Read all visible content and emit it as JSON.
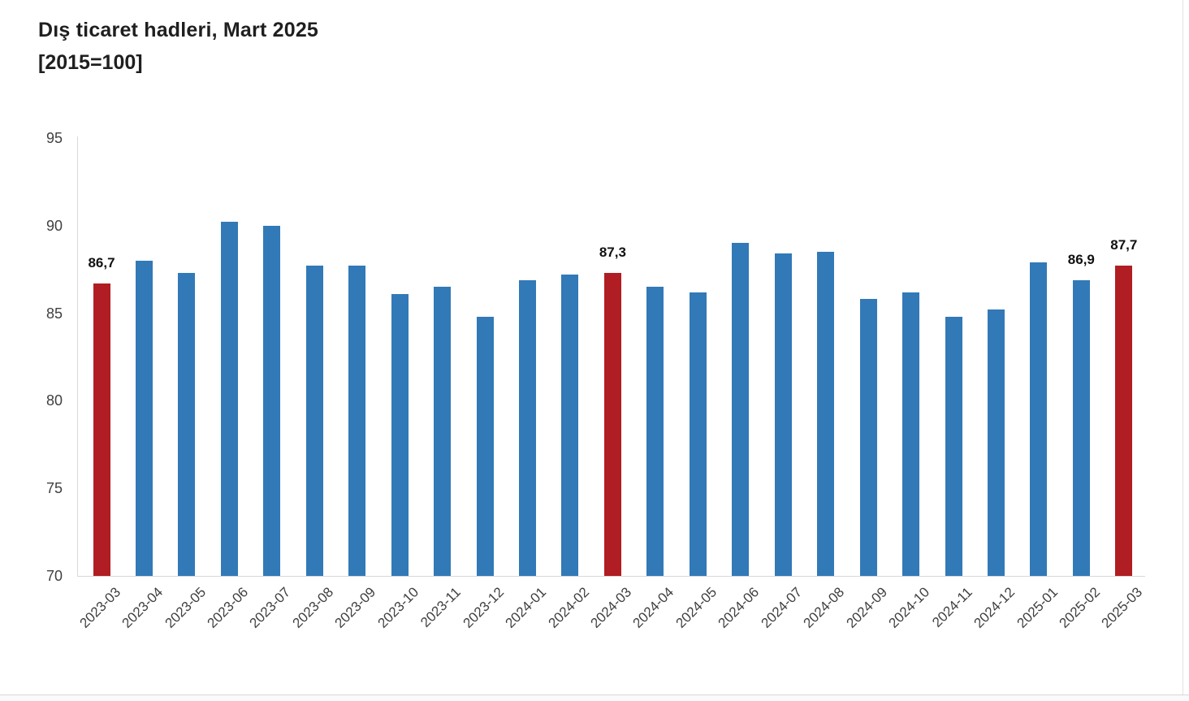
{
  "header": {
    "title": "Dış ticaret hadleri, Mart 2025",
    "subtitle": "[2015=100]"
  },
  "chart_data": {
    "type": "bar",
    "title": "Dış ticaret hadleri, Mart 2025",
    "subtitle": "[2015=100]",
    "categories": [
      "2023-03",
      "2023-04",
      "2023-05",
      "2023-06",
      "2023-07",
      "2023-08",
      "2023-09",
      "2023-10",
      "2023-11",
      "2023-12",
      "2024-01",
      "2024-02",
      "2024-03",
      "2024-04",
      "2024-05",
      "2024-06",
      "2024-07",
      "2024-08",
      "2024-09",
      "2024-10",
      "2024-11",
      "2024-12",
      "2025-01",
      "2025-02",
      "2025-03"
    ],
    "values": [
      86.7,
      88.0,
      87.3,
      90.2,
      90.0,
      87.7,
      87.7,
      86.1,
      86.5,
      84.8,
      86.9,
      87.2,
      87.3,
      86.5,
      86.2,
      89.0,
      88.4,
      88.5,
      85.8,
      86.2,
      84.8,
      85.2,
      87.9,
      86.9,
      87.7
    ],
    "highlighted_indices": [
      0,
      12,
      24
    ],
    "point_labels": {
      "0": "86,7",
      "12": "87,3",
      "23": "86,9",
      "24": "87,7"
    },
    "ylim": [
      70,
      95
    ],
    "yticks": [
      95,
      90,
      85,
      80,
      75,
      70
    ],
    "grid": false,
    "legend": "none",
    "xlabel": "",
    "ylabel": "",
    "colors": {
      "bar": "#3279B7",
      "highlight": "#B01D22",
      "axis_line": "#D9D9D9",
      "tick_text": "#404040",
      "title_text": "#1F1F1F",
      "value_label_text": "#111111"
    }
  }
}
